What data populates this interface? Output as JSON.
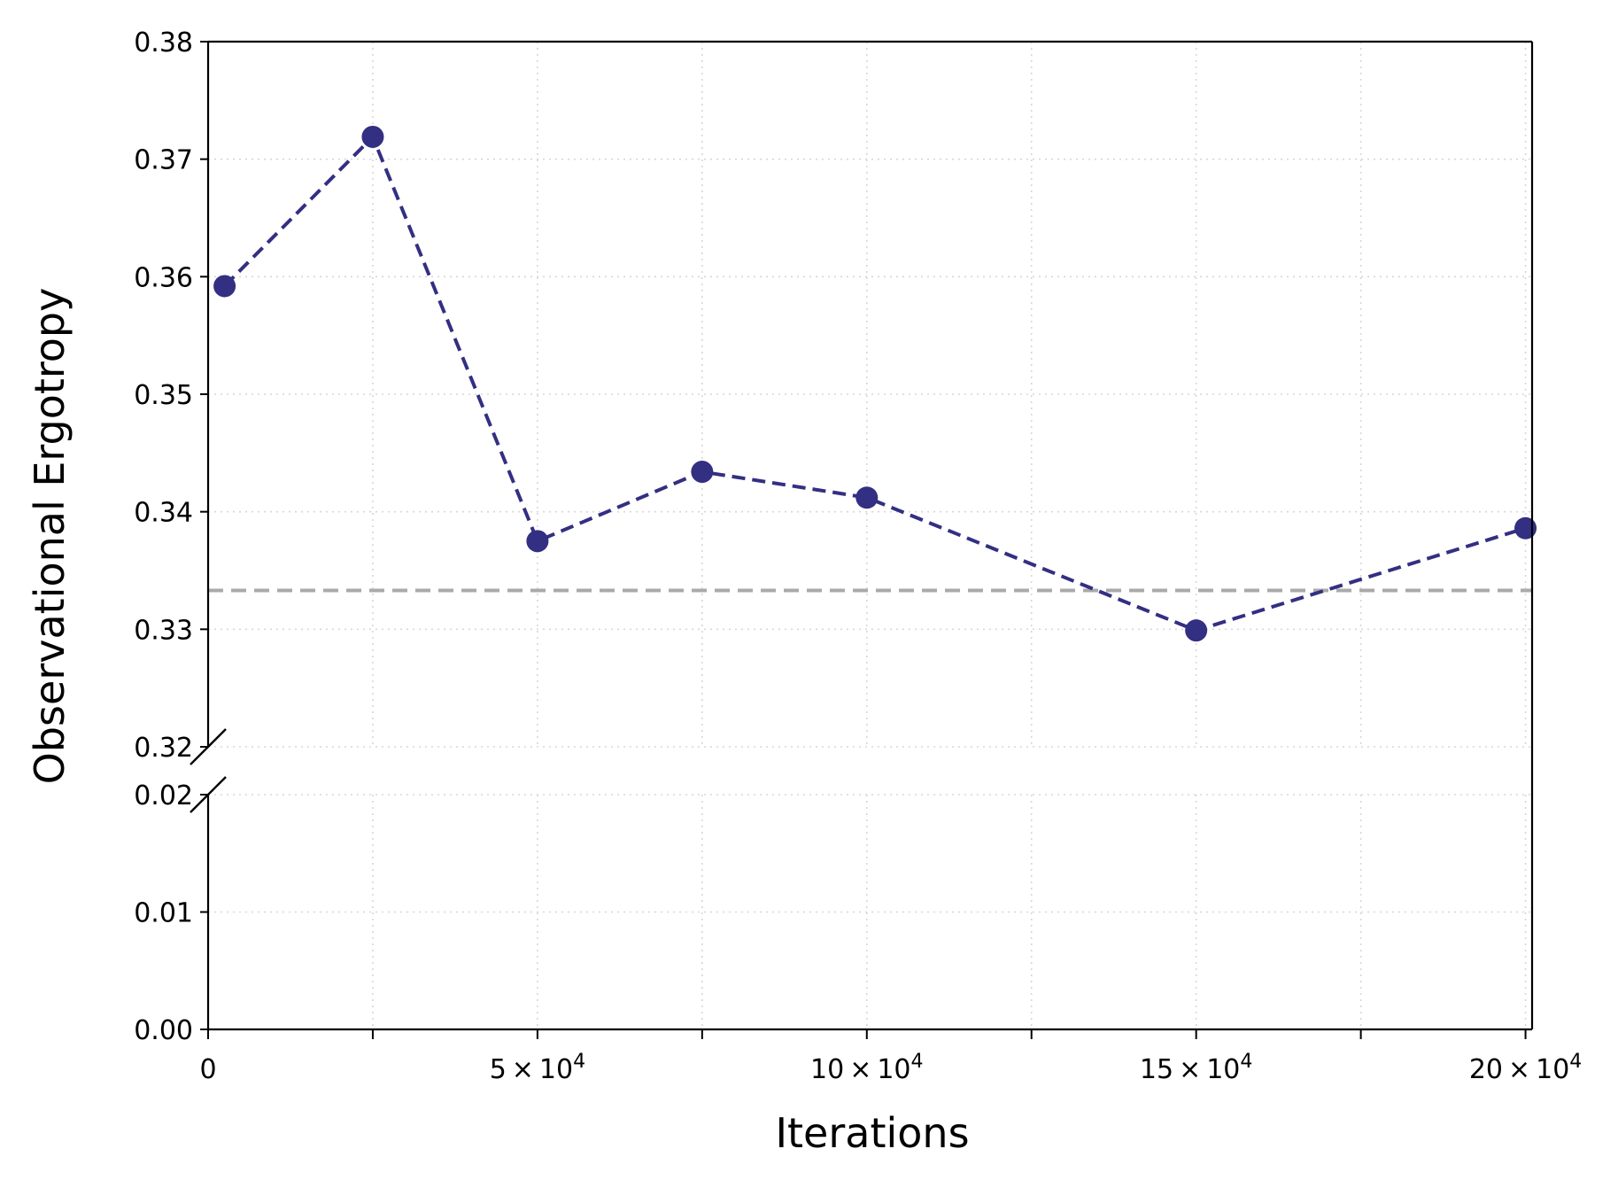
{
  "chart_data": {
    "type": "line",
    "xlabel": "Iterations",
    "ylabel": "Observational Ergotropy",
    "xlim": [
      0,
      201000
    ],
    "broken_y_axis": true,
    "ylim_upper": [
      0.32,
      0.38
    ],
    "ylim_lower": [
      0.0,
      0.02
    ],
    "x_ticks": [
      {
        "value": 0,
        "mantissa": "0",
        "exp": ""
      },
      {
        "value": 50000,
        "mantissa": "5",
        "exp": "4"
      },
      {
        "value": 100000,
        "mantissa": "10",
        "exp": "4"
      },
      {
        "value": 150000,
        "mantissa": "15",
        "exp": "4"
      },
      {
        "value": 200000,
        "mantissa": "20",
        "exp": "4"
      }
    ],
    "x_minor_ticks": [
      25000,
      75000,
      125000,
      175000
    ],
    "y_ticks_upper": [
      {
        "value": 0.32,
        "label": "0.32"
      },
      {
        "value": 0.33,
        "label": "0.33"
      },
      {
        "value": 0.34,
        "label": "0.34"
      },
      {
        "value": 0.35,
        "label": "0.35"
      },
      {
        "value": 0.36,
        "label": "0.36"
      },
      {
        "value": 0.37,
        "label": "0.37"
      },
      {
        "value": 0.38,
        "label": "0.38"
      }
    ],
    "y_ticks_lower": [
      {
        "value": 0.0,
        "label": "0.00"
      },
      {
        "value": 0.01,
        "label": "0.01"
      },
      {
        "value": 0.02,
        "label": "0.02"
      }
    ],
    "grid": true,
    "series": [
      {
        "color": "#332f82",
        "line_style": "dashed",
        "marker": "circle",
        "x": [
          2500,
          25000,
          50000,
          75000,
          100000,
          150000,
          200000
        ],
        "y": [
          0.3592,
          0.3719,
          0.3375,
          0.3434,
          0.3412,
          0.3299,
          0.3386
        ]
      }
    ],
    "reference_line": {
      "y": 0.3333,
      "color": "#aaaaaa",
      "line_style": "dashed"
    }
  }
}
